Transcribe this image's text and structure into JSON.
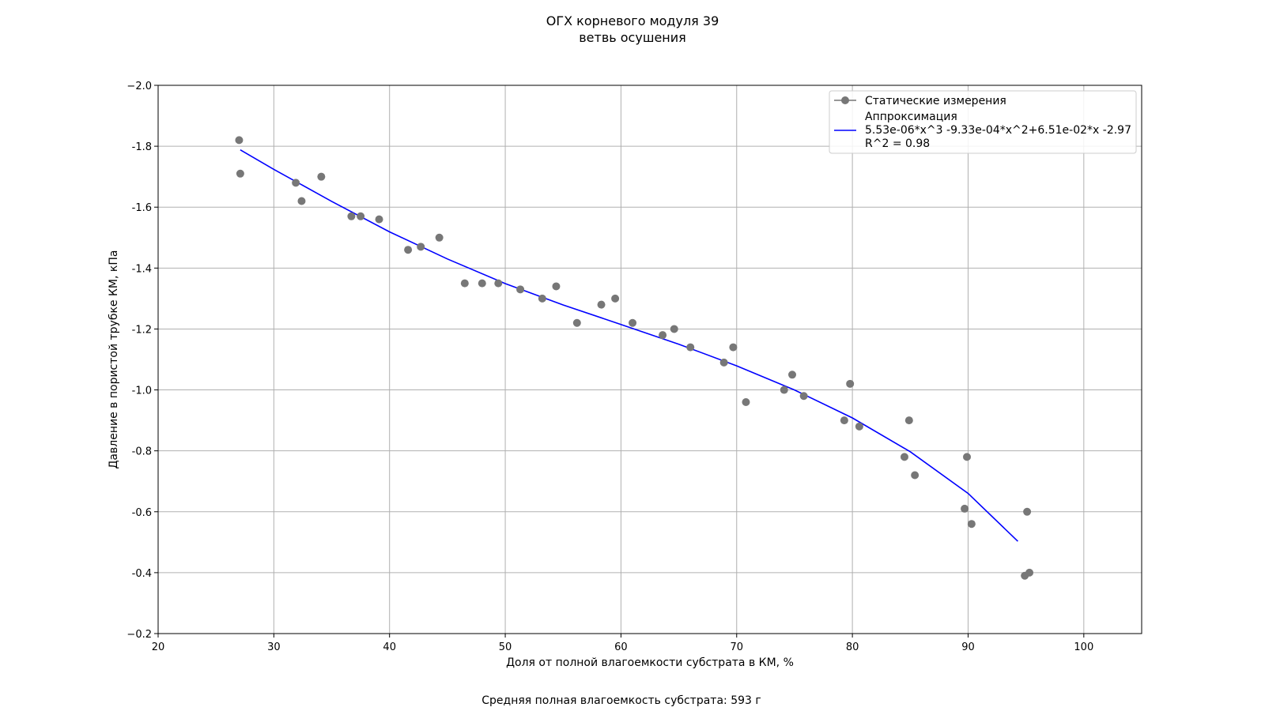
{
  "chart_data": {
    "type": "scatter",
    "title": [
      "ОГХ корневого модуля 39",
      "ветвь осушения"
    ],
    "xlabel": "Доля от полной влагоемкости субстрата в КМ, %",
    "ylabel": "Давление в пористой трубке КМ, кПа",
    "footer": "Средняя полная влагоемкость субстрата: 593 г",
    "xlim": [
      20,
      105
    ],
    "ylim": [
      -2.0,
      -0.2
    ],
    "y_inverted": true,
    "grid": true,
    "legend_position": "top-right",
    "x_ticks": [
      20,
      30,
      40,
      50,
      60,
      70,
      80,
      90,
      100
    ],
    "y_ticks": [
      -2.0,
      -1.8,
      -1.6,
      -1.4,
      -1.2,
      -1.0,
      -0.8,
      -0.6,
      -0.4,
      -0.2
    ],
    "y_tick_labels": [
      "−2.0",
      "-1.8",
      "-1.6",
      "-1.4",
      "-1.2",
      "-1.0",
      "-0.8",
      "-0.6",
      "-0.4",
      "−0.2"
    ],
    "series": [
      {
        "name": "Статические измерения",
        "kind": "scatter",
        "color": "#777777",
        "points": [
          [
            27.0,
            -1.82
          ],
          [
            27.1,
            -1.71
          ],
          [
            31.9,
            -1.68
          ],
          [
            32.4,
            -1.62
          ],
          [
            34.1,
            -1.7
          ],
          [
            36.7,
            -1.57
          ],
          [
            37.5,
            -1.57
          ],
          [
            39.1,
            -1.56
          ],
          [
            41.6,
            -1.46
          ],
          [
            42.7,
            -1.47
          ],
          [
            44.3,
            -1.5
          ],
          [
            46.5,
            -1.35
          ],
          [
            48.0,
            -1.35
          ],
          [
            49.4,
            -1.35
          ],
          [
            51.3,
            -1.33
          ],
          [
            53.2,
            -1.3
          ],
          [
            54.4,
            -1.34
          ],
          [
            56.2,
            -1.22
          ],
          [
            58.3,
            -1.28
          ],
          [
            59.5,
            -1.3
          ],
          [
            61.0,
            -1.22
          ],
          [
            63.6,
            -1.18
          ],
          [
            64.6,
            -1.2
          ],
          [
            66.0,
            -1.14
          ],
          [
            68.9,
            -1.09
          ],
          [
            69.7,
            -1.14
          ],
          [
            70.8,
            -0.96
          ],
          [
            74.1,
            -1.0
          ],
          [
            74.8,
            -1.05
          ],
          [
            75.8,
            -0.98
          ],
          [
            79.3,
            -0.9
          ],
          [
            79.8,
            -1.02
          ],
          [
            80.6,
            -0.88
          ],
          [
            84.5,
            -0.78
          ],
          [
            84.9,
            -0.9
          ],
          [
            85.4,
            -0.72
          ],
          [
            89.7,
            -0.61
          ],
          [
            89.9,
            -0.78
          ],
          [
            90.3,
            -0.56
          ],
          [
            94.9,
            -0.39
          ],
          [
            95.1,
            -0.6
          ],
          [
            95.3,
            -0.4
          ]
        ]
      },
      {
        "name": "Аппроксимация\n5.53e-06*x^3 -9.33e-04*x^2+6.51e-02*x -2.97\nR^2 = 0.98",
        "kind": "line",
        "color": "#0000ff",
        "points": [
          [
            27.1,
            -1.788
          ],
          [
            30,
            -1.724
          ],
          [
            35,
            -1.619
          ],
          [
            40,
            -1.519
          ],
          [
            45,
            -1.43
          ],
          [
            50,
            -1.349
          ],
          [
            55,
            -1.279
          ],
          [
            60,
            -1.215
          ],
          [
            65,
            -1.15
          ],
          [
            70,
            -1.079
          ],
          [
            75,
            -1.0
          ],
          [
            80,
            -0.908
          ],
          [
            85,
            -0.797
          ],
          [
            90,
            -0.66
          ],
          [
            94.3,
            -0.503
          ]
        ]
      }
    ]
  }
}
